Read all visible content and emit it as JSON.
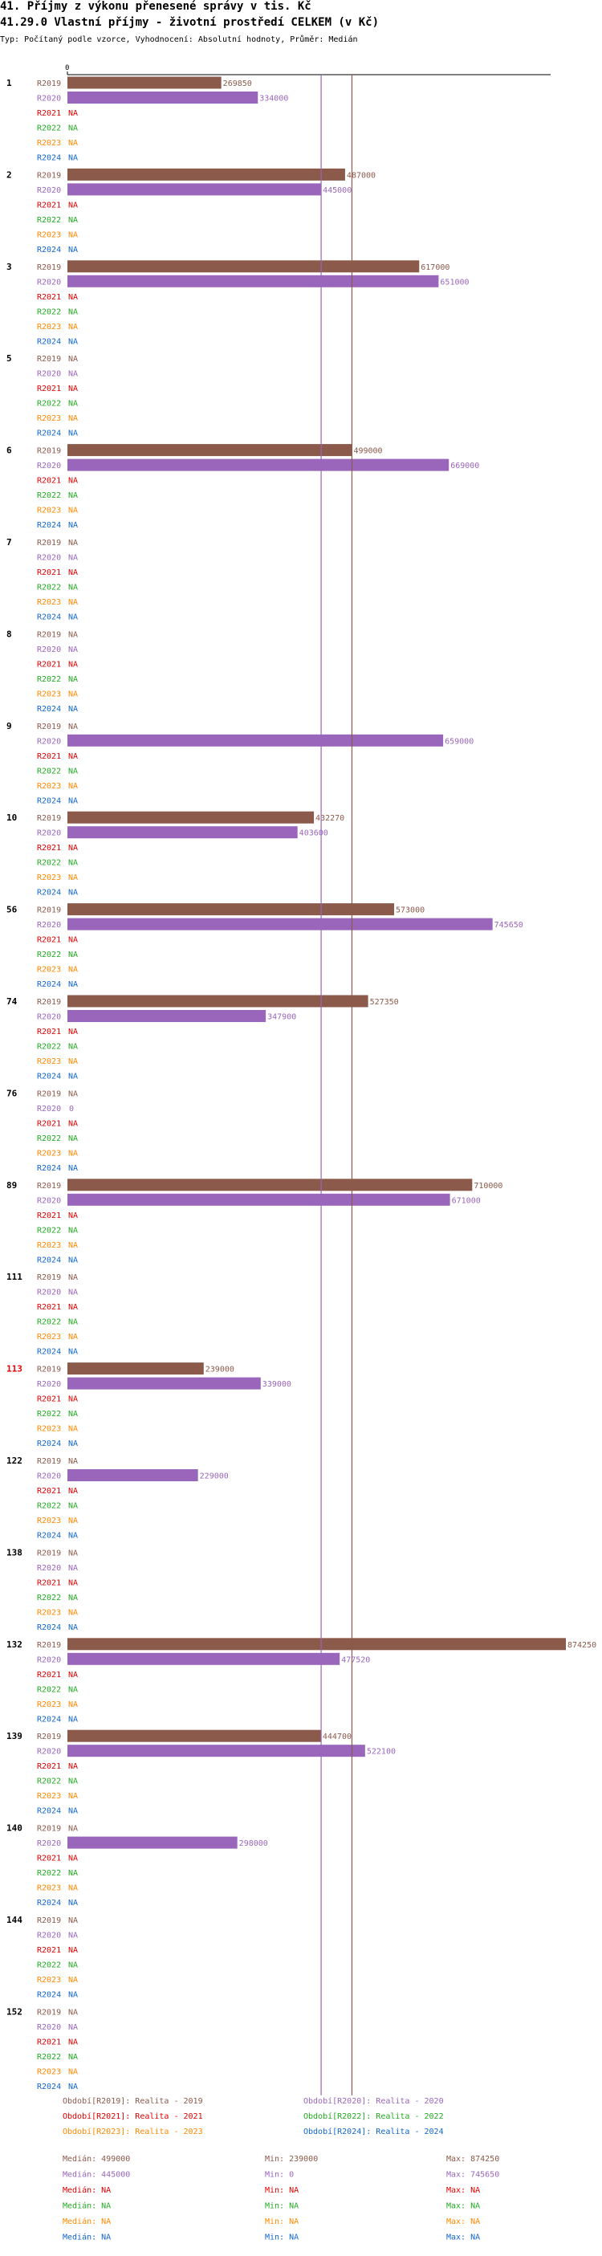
{
  "header": {
    "title1": "41. Příjmy z výkonu přenesené správy v tis. Kč",
    "title2": "41.29.0 Vlastní příjmy - životní prostředí CELKEM (v Kč)",
    "subtitle": "Typ: Počítaný podle vzorce, Vyhodnocení: Absolutní hodnoty, Průměr: Medián"
  },
  "colors": {
    "R2019": "#8b5a4a",
    "R2020": "#9966bb",
    "R2021": "#dd0000",
    "R2022": "#22aa22",
    "R2023": "#ff8800",
    "R2024": "#1166cc",
    "highlight_group": "#ee0000"
  },
  "na_label": "NA",
  "chart_data": {
    "type": "bar",
    "orientation": "horizontal",
    "x_axis_zero_label": "0",
    "xlim": [
      0,
      874250
    ],
    "series_names": [
      "R2019",
      "R2020",
      "R2021",
      "R2022",
      "R2023",
      "R2024"
    ],
    "groups": [
      {
        "label": "1",
        "values": [
          269850,
          334000,
          null,
          null,
          null,
          null
        ]
      },
      {
        "label": "2",
        "values": [
          487000,
          445000,
          null,
          null,
          null,
          null
        ]
      },
      {
        "label": "3",
        "values": [
          617000,
          651000,
          null,
          null,
          null,
          null
        ]
      },
      {
        "label": "5",
        "values": [
          null,
          null,
          null,
          null,
          null,
          null
        ]
      },
      {
        "label": "6",
        "values": [
          499000,
          669000,
          null,
          null,
          null,
          null
        ]
      },
      {
        "label": "7",
        "values": [
          null,
          null,
          null,
          null,
          null,
          null
        ]
      },
      {
        "label": "8",
        "values": [
          null,
          null,
          null,
          null,
          null,
          null
        ]
      },
      {
        "label": "9",
        "values": [
          null,
          659000,
          null,
          null,
          null,
          null
        ]
      },
      {
        "label": "10",
        "values": [
          432270,
          403600,
          null,
          null,
          null,
          null
        ]
      },
      {
        "label": "56",
        "values": [
          573000,
          745650,
          null,
          null,
          null,
          null
        ]
      },
      {
        "label": "74",
        "values": [
          527350,
          347900,
          null,
          null,
          null,
          null
        ]
      },
      {
        "label": "76",
        "values": [
          null,
          0,
          null,
          null,
          null,
          null
        ]
      },
      {
        "label": "89",
        "values": [
          710000,
          671000,
          null,
          null,
          null,
          null
        ]
      },
      {
        "label": "111",
        "values": [
          null,
          null,
          null,
          null,
          null,
          null
        ]
      },
      {
        "label": "113",
        "values": [
          239000,
          339000,
          null,
          null,
          null,
          null
        ],
        "highlight": true
      },
      {
        "label": "122",
        "values": [
          null,
          229000,
          null,
          null,
          null,
          null
        ]
      },
      {
        "label": "138",
        "values": [
          null,
          null,
          null,
          null,
          null,
          null
        ]
      },
      {
        "label": "132",
        "values": [
          874250,
          477520,
          null,
          null,
          null,
          null
        ]
      },
      {
        "label": "139",
        "values": [
          444700,
          522100,
          null,
          null,
          null,
          null
        ]
      },
      {
        "label": "140",
        "values": [
          null,
          298000,
          null,
          null,
          null,
          null
        ]
      },
      {
        "label": "144",
        "values": [
          null,
          null,
          null,
          null,
          null,
          null
        ]
      },
      {
        "label": "152",
        "values": [
          null,
          null,
          null,
          null,
          null,
          null
        ]
      }
    ],
    "median_lines": [
      {
        "series": "R2019",
        "value": 499000
      },
      {
        "series": "R2020",
        "value": 445000
      }
    ],
    "legend": [
      {
        "series": "R2019",
        "text": "Období[R2019]: Realita - 2019"
      },
      {
        "series": "R2020",
        "text": "Období[R2020]: Realita - 2020"
      },
      {
        "series": "R2021",
        "text": "Období[R2021]: Realita - 2021"
      },
      {
        "series": "R2022",
        "text": "Období[R2022]: Realita - 2022"
      },
      {
        "series": "R2023",
        "text": "Období[R2023]: Realita - 2023"
      },
      {
        "series": "R2024",
        "text": "Období[R2024]: Realita - 2024"
      }
    ],
    "stats": [
      {
        "series": "R2019",
        "median": "Medián: 499000",
        "min": "Min: 239000",
        "max": "Max: 874250"
      },
      {
        "series": "R2020",
        "median": "Medián: 445000",
        "min": "Min: 0",
        "max": "Max: 745650"
      },
      {
        "series": "R2021",
        "median": "Medián: NA",
        "min": "Min: NA",
        "max": "Max: NA"
      },
      {
        "series": "R2022",
        "median": "Medián: NA",
        "min": "Min: NA",
        "max": "Max: NA"
      },
      {
        "series": "R2023",
        "median": "Medián: NA",
        "min": "Min: NA",
        "max": "Max: NA"
      },
      {
        "series": "R2024",
        "median": "Medián: NA",
        "min": "Min: NA",
        "max": "Max: NA"
      }
    ]
  }
}
